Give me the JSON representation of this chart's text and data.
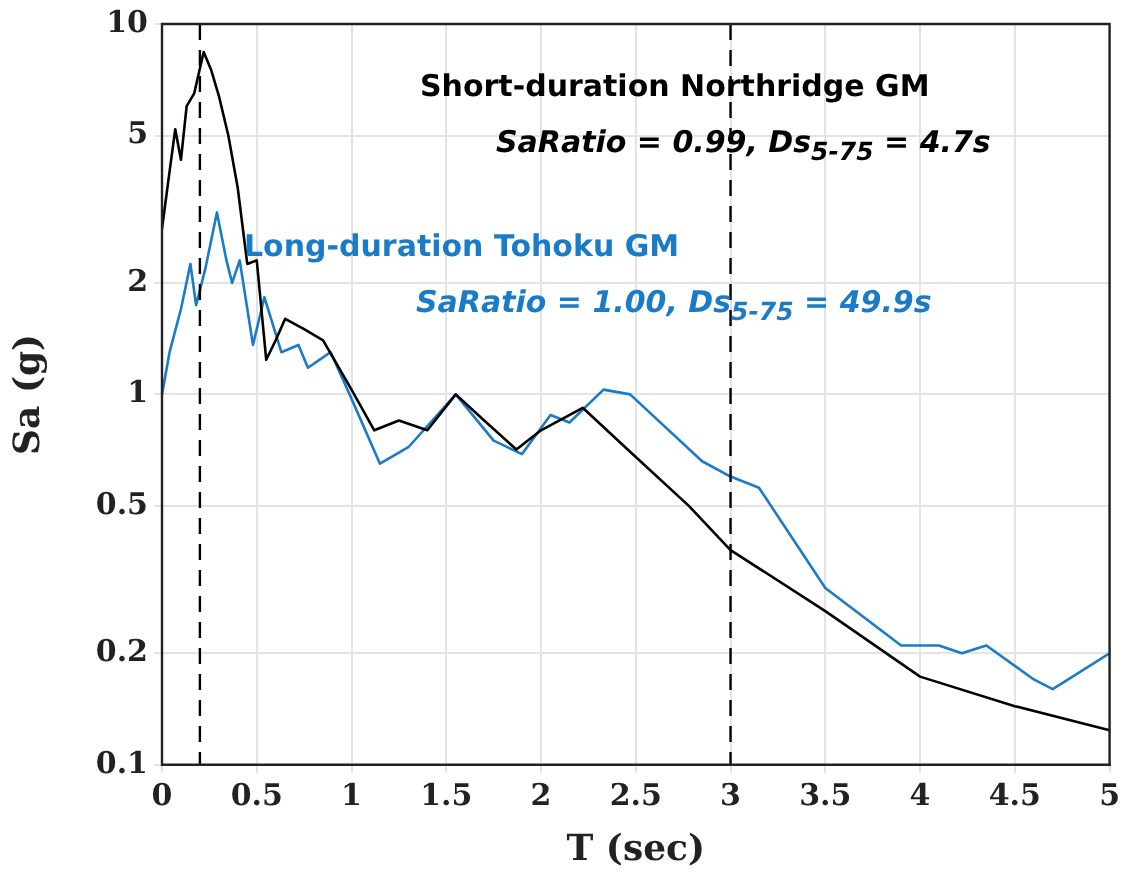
{
  "chart_data": {
    "type": "line",
    "xlabel": "T (sec)",
    "ylabel": "Sa (g)",
    "xlim": [
      0,
      5
    ],
    "xticks": [
      0,
      0.5,
      1,
      1.5,
      2,
      2.5,
      3,
      3.5,
      4,
      4.5,
      5
    ],
    "ylim": [
      0.1,
      10
    ],
    "yticks": [
      0.1,
      0.2,
      0.5,
      1,
      2,
      5,
      10
    ],
    "log": "y",
    "grid": true,
    "legend": false,
    "marker": "none",
    "line_style": "solid",
    "ref_lines": [
      {
        "axis": "x",
        "value": 0.2,
        "color": "#000000",
        "line_style": "dashed"
      },
      {
        "axis": "x",
        "value": 3,
        "color": "#000000",
        "line_style": "dashed"
      }
    ],
    "annotations": [
      "Short-duration Northridge GM",
      "SaRatio = 0.99, Ds$_{5-75}$ = 4.7s",
      "Long-duration Tohoku GM",
      "SaRatio = 1.00, Ds$_{5-75}$ = 49.9s"
    ],
    "series": [
      {
        "color": "#000000",
        "x": [
          0,
          0.04,
          0.07,
          0.1,
          0.13,
          0.17,
          0.22,
          0.26,
          0.3,
          0.35,
          0.4,
          0.45,
          0.5,
          0.55,
          0.6,
          0.65,
          0.75,
          0.85,
          1.0,
          1.12,
          1.25,
          1.4,
          1.55,
          1.7,
          1.87,
          2.0,
          2.22,
          2.47,
          2.78,
          3.0,
          3.5,
          4.0,
          4.5,
          5.0
        ],
        "values": [
          2.8,
          4.0,
          5.2,
          4.3,
          6.0,
          6.5,
          8.4,
          7.5,
          6.4,
          5.0,
          3.6,
          2.25,
          2.3,
          1.24,
          1.4,
          1.6,
          1.5,
          1.4,
          1.03,
          0.8,
          0.85,
          0.8,
          1.0,
          0.85,
          0.71,
          0.8,
          0.92,
          0.7,
          0.5,
          0.38,
          0.26,
          0.173,
          0.144,
          0.124
        ]
      },
      {
        "color": "#1a7bc8",
        "x": [
          0,
          0.04,
          0.1,
          0.15,
          0.18,
          0.23,
          0.29,
          0.34,
          0.37,
          0.41,
          0.48,
          0.54,
          0.63,
          0.72,
          0.77,
          0.89,
          0.99,
          1.15,
          1.3,
          1.55,
          1.75,
          1.9,
          2.05,
          2.15,
          2.33,
          2.47,
          2.85,
          3.0,
          3.15,
          3.5,
          3.9,
          4.1,
          4.22,
          4.35,
          4.6,
          4.7,
          5.0
        ],
        "values": [
          1.0,
          1.3,
          1.7,
          2.25,
          1.74,
          2.2,
          3.1,
          2.3,
          2.0,
          2.3,
          1.36,
          1.83,
          1.3,
          1.36,
          1.18,
          1.3,
          1.0,
          0.65,
          0.72,
          1.0,
          0.75,
          0.69,
          0.88,
          0.84,
          1.03,
          1.0,
          0.66,
          0.6,
          0.56,
          0.3,
          0.21,
          0.21,
          0.2,
          0.21,
          0.17,
          0.16,
          0.2
        ]
      }
    ]
  }
}
